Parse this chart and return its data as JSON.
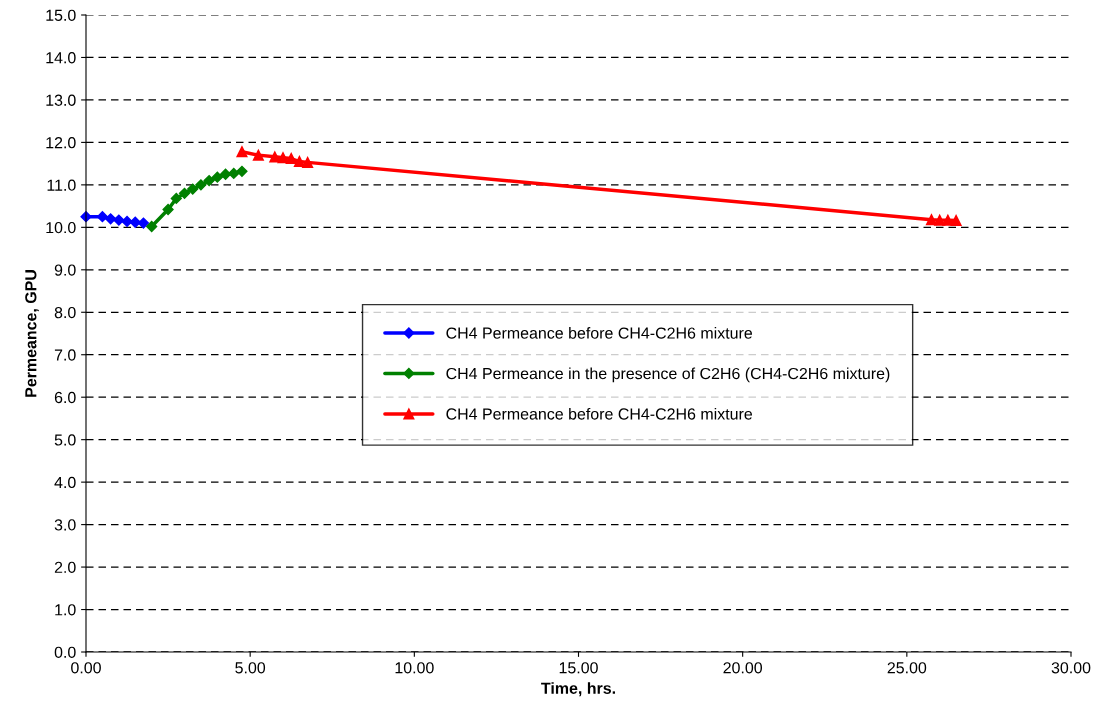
{
  "chart_data": {
    "type": "line",
    "xlabel": "Time, hrs.",
    "ylabel": "Permeance, GPU",
    "xlim": [
      0,
      30
    ],
    "xticks": [
      {
        "value": 0,
        "label": "0.00"
      },
      {
        "value": 5,
        "label": "5.00"
      },
      {
        "value": 10,
        "label": "10.00"
      },
      {
        "value": 15,
        "label": "15.00"
      },
      {
        "value": 20,
        "label": "20.00"
      },
      {
        "value": 25,
        "label": "25.00"
      },
      {
        "value": 30,
        "label": "30.00"
      }
    ],
    "ylim": [
      0,
      15
    ],
    "yticks": [
      {
        "value": 0,
        "label": "0.0"
      },
      {
        "value": 1,
        "label": "1.0"
      },
      {
        "value": 2,
        "label": "2.0"
      },
      {
        "value": 3,
        "label": "3.0"
      },
      {
        "value": 4,
        "label": "4.0"
      },
      {
        "value": 5,
        "label": "5.0"
      },
      {
        "value": 6,
        "label": "6.0"
      },
      {
        "value": 7,
        "label": "7.0"
      },
      {
        "value": 8,
        "label": "8.0"
      },
      {
        "value": 9,
        "label": "9.0"
      },
      {
        "value": 10,
        "label": "10.0"
      },
      {
        "value": 11,
        "label": "11.0"
      },
      {
        "value": 12,
        "label": "12.0"
      },
      {
        "value": 13,
        "label": "13.0"
      },
      {
        "value": 14,
        "label": "14.0"
      },
      {
        "value": 15,
        "label": "15.0"
      }
    ],
    "grid": "y",
    "legend": "center",
    "line_style": "solid",
    "series": [
      {
        "name": "CH4 Permeance before CH4-C2H6 mixture",
        "color": "#0000ff",
        "marker": "diamond",
        "x": [
          0,
          0.5,
          0.75,
          1.0,
          1.25,
          1.5,
          1.75
        ],
        "values": [
          10.25,
          10.25,
          10.2,
          10.17,
          10.14,
          10.12,
          10.1
        ]
      },
      {
        "name": "CH4 Permeance in the presence of C2H6 (CH4-C2H6 mixture)",
        "color": "#008000",
        "marker": "diamond",
        "x": [
          2.0,
          2.5,
          2.75,
          3.0,
          3.25,
          3.5,
          3.75,
          4.0,
          4.25,
          4.5,
          4.75
        ],
        "values": [
          10.02,
          10.42,
          10.68,
          10.8,
          10.9,
          11.0,
          11.1,
          11.18,
          11.25,
          11.27,
          11.32
        ]
      },
      {
        "name": "CH4 Permeance before CH4-C2H6 mixture",
        "color": "#ff0000",
        "marker": "triangle",
        "x": [
          4.75,
          5.25,
          5.75,
          6.0,
          6.25,
          6.5,
          6.75,
          25.75,
          26.0,
          26.25,
          26.5
        ],
        "values": [
          11.78,
          11.7,
          11.66,
          11.64,
          11.62,
          11.55,
          11.53,
          10.18,
          10.17,
          10.17,
          10.16
        ]
      }
    ]
  }
}
